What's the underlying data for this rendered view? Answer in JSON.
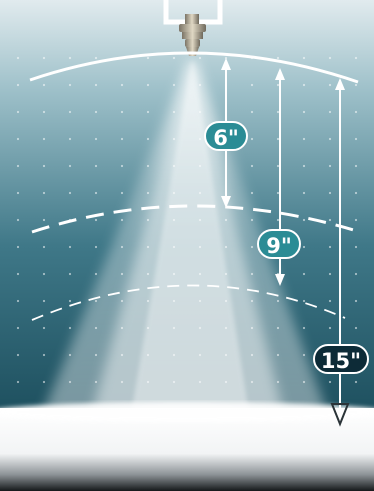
{
  "labels": {
    "distance_6": "6\"",
    "distance_9": "9\"",
    "distance_15": "15\""
  },
  "colors": {
    "badge_teal": "#2b8c95",
    "badge_dark": "#0d2b37",
    "background_top": "#dbe7ea",
    "background_bottom": "#1c4c5b"
  },
  "icons": {
    "nozzle": "spray-nozzle-icon"
  }
}
